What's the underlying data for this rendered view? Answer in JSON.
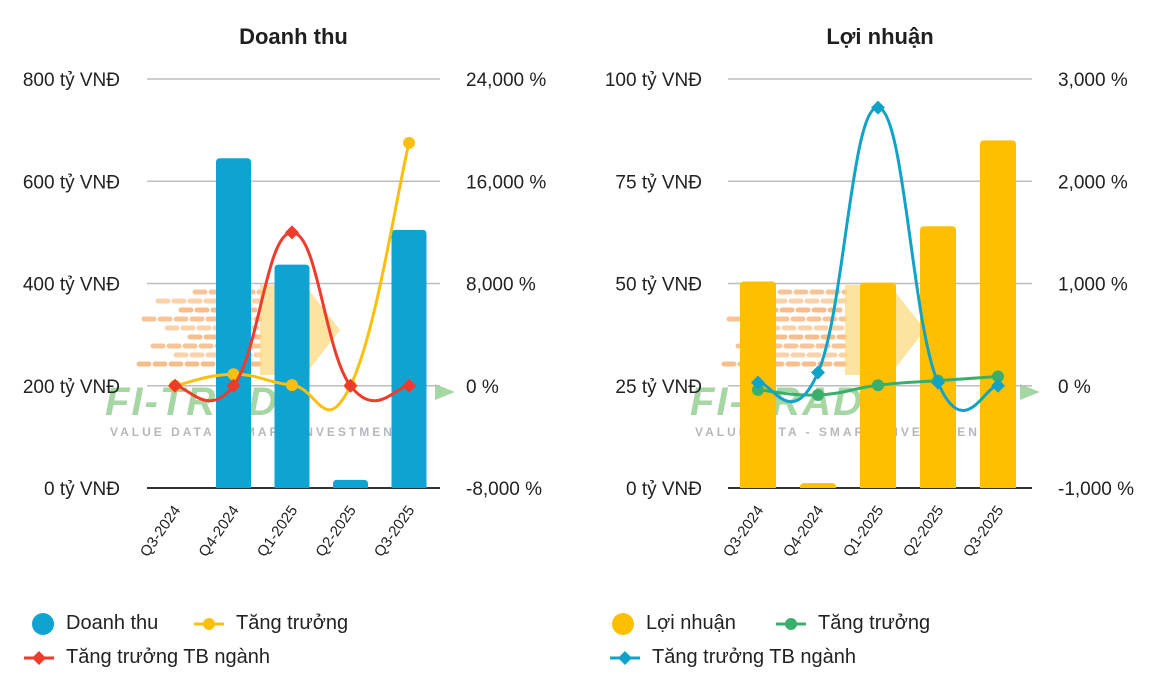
{
  "colors": {
    "revenue_bar": "#0ea3d1",
    "revenue_growth": "#fbbf0f",
    "revenue_industry": "#ef3b2c",
    "profit_bar": "#fdbf00",
    "profit_growth": "#3aaf6b",
    "profit_industry": "#11a3c7",
    "grid": "#bdbdbd",
    "axis": "#333333"
  },
  "watermark": {
    "logo": "FI-TRADE",
    "tagline": "VALUE DATA - SMART INVESTMENT"
  },
  "chart_data": [
    {
      "type": "bar",
      "title": "Doanh thu",
      "categories": [
        "Q3-2024",
        "Q4-2024",
        "Q1-2025",
        "Q2-2025",
        "Q3-2025"
      ],
      "y_left": {
        "ylim": [
          0,
          800
        ],
        "ticks": [
          0,
          200,
          400,
          600,
          800
        ],
        "tick_labels": [
          "0 tỷ VNĐ",
          "200 tỷ VNĐ",
          "400 tỷ VNĐ",
          "600 tỷ VNĐ",
          "800 tỷ VNĐ"
        ]
      },
      "y_right": {
        "ylim": [
          -8000,
          24000
        ],
        "ticks": [
          -8000,
          0,
          8000,
          16000,
          24000
        ],
        "tick_labels": [
          "-8,000 %",
          "0 %",
          "8,000 %",
          "16,000 %",
          "24,000 %"
        ]
      },
      "series": [
        {
          "name": "Doanh thu",
          "kind": "bar",
          "axis": "left",
          "color_key": "revenue_bar",
          "values": [
            0,
            645,
            437,
            16,
            505
          ]
        },
        {
          "name": "Tăng trưởng",
          "kind": "line",
          "axis": "right",
          "color_key": "revenue_growth",
          "marker": "circle",
          "values": [
            0,
            900,
            50,
            0,
            19000
          ]
        },
        {
          "name": "Tăng trưởng TB ngành",
          "kind": "line",
          "axis": "right",
          "color_key": "revenue_industry",
          "marker": "diamond",
          "values": [
            0,
            0,
            12000,
            0,
            0
          ]
        }
      ],
      "legend": [
        "Doanh thu",
        "Tăng trưởng",
        "Tăng trưởng TB ngành"
      ]
    },
    {
      "type": "bar",
      "title": "Lợi nhuận",
      "categories": [
        "Q3-2024",
        "Q4-2024",
        "Q1-2025",
        "Q2-2025",
        "Q3-2025"
      ],
      "y_left": {
        "ylim": [
          0,
          100
        ],
        "ticks": [
          0,
          25,
          50,
          75,
          100
        ],
        "tick_labels": [
          "0 tỷ VNĐ",
          "25 tỷ VNĐ",
          "50 tỷ VNĐ",
          "75 tỷ VNĐ",
          "100 tỷ VNĐ"
        ]
      },
      "y_right": {
        "ylim": [
          -1000,
          3000
        ],
        "ticks": [
          -1000,
          0,
          1000,
          2000,
          3000
        ],
        "tick_labels": [
          "-1,000 %",
          "0 %",
          "1,000 %",
          "2,000 %",
          "3,000 %"
        ]
      },
      "series": [
        {
          "name": "Lợi nhuận",
          "kind": "bar",
          "axis": "left",
          "color_key": "profit_bar",
          "values": [
            50.5,
            1.2,
            50.2,
            64,
            85
          ]
        },
        {
          "name": "Tăng trưởng",
          "kind": "line",
          "axis": "right",
          "color_key": "profit_growth",
          "marker": "circle",
          "values": [
            -40,
            -90,
            5,
            50,
            90
          ]
        },
        {
          "name": "Tăng trưởng TB ngành",
          "kind": "line",
          "axis": "right",
          "color_key": "profit_industry",
          "marker": "diamond",
          "values": [
            30,
            130,
            2720,
            30,
            0
          ]
        }
      ],
      "legend": [
        "Lợi nhuận",
        "Tăng trưởng",
        "Tăng trưởng TB ngành"
      ]
    }
  ]
}
